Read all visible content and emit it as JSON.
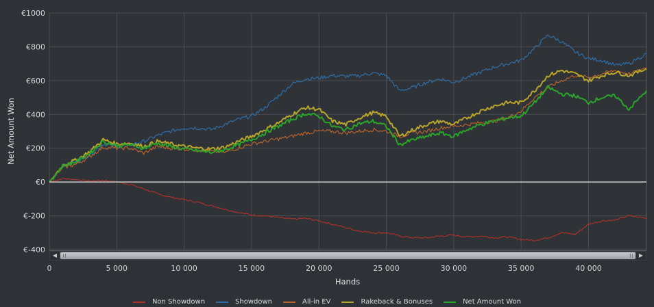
{
  "chart_data": {
    "type": "line",
    "xlabel": "Hands",
    "ylabel": "Net Amount Won",
    "xlim": [
      0,
      44300
    ],
    "ylim": [
      -400,
      1000
    ],
    "x_ticks": [
      "0",
      "5 000",
      "10 000",
      "15 000",
      "20 000",
      "25 000",
      "30 000",
      "35 000",
      "40 000"
    ],
    "x_tick_values": [
      0,
      5000,
      10000,
      15000,
      20000,
      25000,
      30000,
      35000,
      40000
    ],
    "y_ticks": [
      "€1000",
      "€800",
      "€600",
      "€400",
      "€200",
      "€0",
      "€-200",
      "€-400"
    ],
    "y_tick_values": [
      1000,
      800,
      600,
      400,
      200,
      0,
      -200,
      -400
    ],
    "grid": true,
    "legend_position": "bottom",
    "x": [
      0,
      1000,
      2000,
      3000,
      4000,
      5000,
      6000,
      7000,
      8000,
      9000,
      10000,
      11000,
      12000,
      13000,
      14000,
      15000,
      16000,
      17000,
      18000,
      19000,
      20000,
      21000,
      22000,
      23000,
      24000,
      25000,
      26000,
      27000,
      28000,
      29000,
      30000,
      31000,
      32000,
      33000,
      34000,
      35000,
      36000,
      37000,
      38000,
      39000,
      40000,
      41000,
      42000,
      43000,
      44300
    ],
    "series": [
      {
        "name": "Non Showdown",
        "color": "#b3302c",
        "width": 1.1,
        "values": [
          0,
          20,
          15,
          5,
          10,
          0,
          -15,
          -40,
          -70,
          -90,
          -105,
          -120,
          -140,
          -160,
          -180,
          -195,
          -200,
          -210,
          -220,
          -215,
          -230,
          -250,
          -270,
          -290,
          -300,
          -300,
          -320,
          -330,
          -330,
          -320,
          -315,
          -325,
          -320,
          -330,
          -325,
          -340,
          -345,
          -330,
          -300,
          -310,
          -250,
          -230,
          -225,
          -200,
          -215
        ]
      },
      {
        "name": "Showdown",
        "color": "#2f6ea8",
        "width": 1.2,
        "values": [
          0,
          95,
          120,
          160,
          225,
          210,
          220,
          240,
          275,
          300,
          320,
          320,
          310,
          340,
          370,
          390,
          440,
          510,
          580,
          610,
          615,
          630,
          625,
          630,
          645,
          630,
          540,
          560,
          590,
          610,
          590,
          620,
          650,
          680,
          700,
          720,
          790,
          870,
          830,
          770,
          730,
          720,
          690,
          700,
          760
        ]
      },
      {
        "name": "All-in EV",
        "color": "#c1662a",
        "width": 1.1,
        "values": [
          0,
          85,
          105,
          150,
          205,
          200,
          200,
          170,
          210,
          200,
          195,
          190,
          180,
          175,
          200,
          225,
          240,
          255,
          270,
          290,
          300,
          300,
          290,
          300,
          310,
          300,
          270,
          290,
          300,
          320,
          330,
          340,
          350,
          360,
          380,
          420,
          500,
          560,
          600,
          630,
          620,
          640,
          660,
          640,
          670
        ]
      },
      {
        "name": "Rakeback & Bonuses",
        "color": "#b8a62c",
        "width": 2.0,
        "values": [
          0,
          100,
          130,
          180,
          250,
          225,
          230,
          210,
          240,
          225,
          210,
          200,
          195,
          205,
          240,
          270,
          310,
          350,
          400,
          440,
          430,
          360,
          340,
          380,
          410,
          390,
          270,
          310,
          340,
          360,
          340,
          380,
          420,
          450,
          470,
          470,
          540,
          630,
          660,
          640,
          600,
          630,
          650,
          630,
          670
        ]
      },
      {
        "name": "Net Amount Won",
        "color": "#2aa52a",
        "width": 2.0,
        "values": [
          0,
          95,
          120,
          170,
          240,
          215,
          220,
          200,
          230,
          210,
          195,
          185,
          175,
          190,
          220,
          250,
          290,
          330,
          370,
          405,
          390,
          330,
          310,
          345,
          360,
          330,
          220,
          250,
          270,
          290,
          270,
          310,
          340,
          360,
          380,
          390,
          470,
          560,
          520,
          510,
          470,
          500,
          510,
          430,
          540
        ]
      }
    ]
  }
}
